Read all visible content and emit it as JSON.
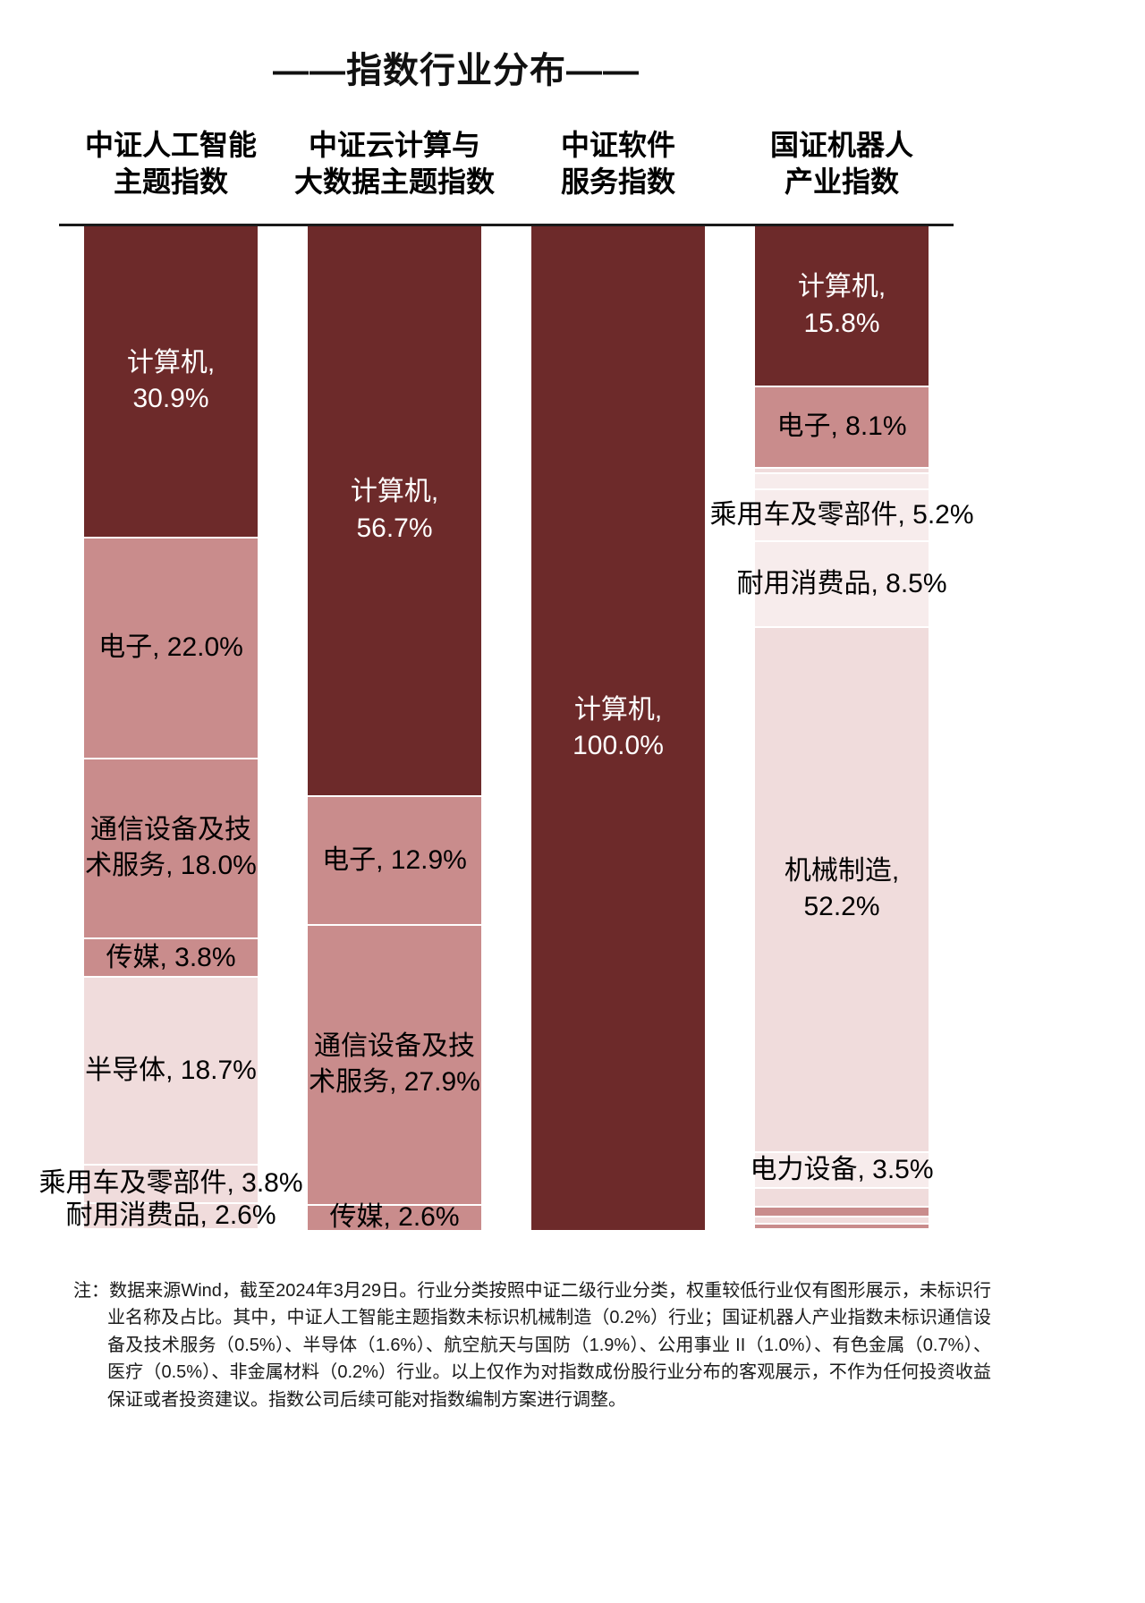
{
  "title": "——指数行业分布——",
  "palette": {
    "dark": "#6d2a2a",
    "rose": "#c98c8c",
    "light": "#f0dcdc",
    "pale": "#f7ecec",
    "separator": "#ffffff",
    "text_white": "#ffffff",
    "text_black": "#000000"
  },
  "chart_data": {
    "type": "bar",
    "stacked": true,
    "orientation": "vertical",
    "value_unit": "%",
    "total_per_column": 100,
    "title": "——指数行业分布——",
    "columns": [
      {
        "header": "中证人工智能\n主题指数",
        "segments": [
          {
            "industry": "计算机",
            "value": 30.9,
            "label": "计算机,\n30.9%",
            "color": "dark",
            "text": "white"
          },
          {
            "industry": "电子",
            "value": 22.0,
            "label": "电子, 22.0%",
            "color": "rose",
            "text": "black"
          },
          {
            "industry": "通信设备及技术服务",
            "value": 18.0,
            "label": "通信设备及技\n术服务, 18.0%",
            "color": "rose",
            "text": "black"
          },
          {
            "industry": "传媒",
            "value": 3.8,
            "label": "传媒, 3.8%",
            "color": "rose",
            "text": "black"
          },
          {
            "industry": "半导体",
            "value": 18.7,
            "label": "半导体, 18.7%",
            "color": "light",
            "text": "black"
          },
          {
            "industry": "乘用车及零部件",
            "value": 3.8,
            "label": "乘用车及零部件, 3.8%",
            "color": "light",
            "text": "black"
          },
          {
            "industry": "耐用消费品",
            "value": 2.6,
            "label": "耐用消费品, 2.6%",
            "color": "light",
            "text": "black"
          },
          {
            "industry": "机械制造",
            "value": 0.2,
            "label": "",
            "color": "rose",
            "text": "black"
          }
        ]
      },
      {
        "header": "中证云计算与\n大数据主题指数",
        "segments": [
          {
            "industry": "计算机",
            "value": 56.7,
            "label": "计算机,\n56.7%",
            "color": "dark",
            "text": "white"
          },
          {
            "industry": "电子",
            "value": 12.9,
            "label": "电子, 12.9%",
            "color": "rose",
            "text": "black"
          },
          {
            "industry": "通信设备及技术服务",
            "value": 27.9,
            "label": "通信设备及技\n术服务, 27.9%",
            "color": "rose",
            "text": "black"
          },
          {
            "industry": "传媒",
            "value": 2.6,
            "label": "传媒, 2.6%",
            "color": "rose",
            "text": "black"
          }
        ]
      },
      {
        "header": "中证软件\n服务指数",
        "segments": [
          {
            "industry": "计算机",
            "value": 100.0,
            "label": "计算机,\n100.0%",
            "color": "dark",
            "text": "white"
          }
        ]
      },
      {
        "header": "国证机器人\n产业指数",
        "segments": [
          {
            "industry": "计算机",
            "value": 15.8,
            "label": "计算机,\n15.8%",
            "color": "dark",
            "text": "white"
          },
          {
            "industry": "电子",
            "value": 8.1,
            "label": "电子, 8.1%",
            "color": "rose",
            "text": "black"
          },
          {
            "industry": "通信设备及技术服务",
            "value": 0.5,
            "label": "",
            "color": "light",
            "text": "black"
          },
          {
            "industry": "半导体",
            "value": 1.6,
            "label": "",
            "color": "pale",
            "text": "black"
          },
          {
            "industry": "乘用车及零部件",
            "value": 5.2,
            "label": "乘用车及零部件, 5.2%",
            "color": "pale",
            "text": "black"
          },
          {
            "industry": "耐用消费品",
            "value": 8.5,
            "label": "耐用消费品, 8.5%",
            "color": "pale",
            "text": "black"
          },
          {
            "industry": "机械制造",
            "value": 52.2,
            "label": "机械制造,\n52.2%",
            "color": "light",
            "text": "black"
          },
          {
            "industry": "电力设备",
            "value": 3.5,
            "label": "电力设备, 3.5%",
            "color": "pale",
            "text": "black"
          },
          {
            "industry": "航空航天与国防",
            "value": 1.9,
            "label": "",
            "color": "light",
            "text": "black"
          },
          {
            "industry": "公用事业II",
            "value": 1.0,
            "label": "",
            "color": "rose",
            "text": "black"
          },
          {
            "industry": "有色金属",
            "value": 0.7,
            "label": "",
            "color": "light",
            "text": "black"
          },
          {
            "industry": "医疗",
            "value": 0.5,
            "label": "",
            "color": "rose",
            "text": "black"
          },
          {
            "industry": "非金属材料",
            "value": 0.2,
            "label": "",
            "color": "light",
            "text": "black"
          }
        ]
      }
    ]
  },
  "footnote": "注：数据来源Wind，截至2024年3月29日。行业分类按照中证二级行业分类，权重较低行业仅有图形展示，未标识行业名称及占比。其中，中证人工智能主题指数未标识机械制造（0.2%）行业；国证机器人产业指数未标识通信设备及技术服务（0.5%）、半导体（1.6%）、航空航天与国防（1.9%）、公用事业 II（1.0%）、有色金属（0.7%）、医疗（0.5%）、非金属材料（0.2%）行业。以上仅作为对指数成份股行业分布的客观展示，不作为任何投资收益保证或者投资建议。指数公司后续可能对指数编制方案进行调整。"
}
